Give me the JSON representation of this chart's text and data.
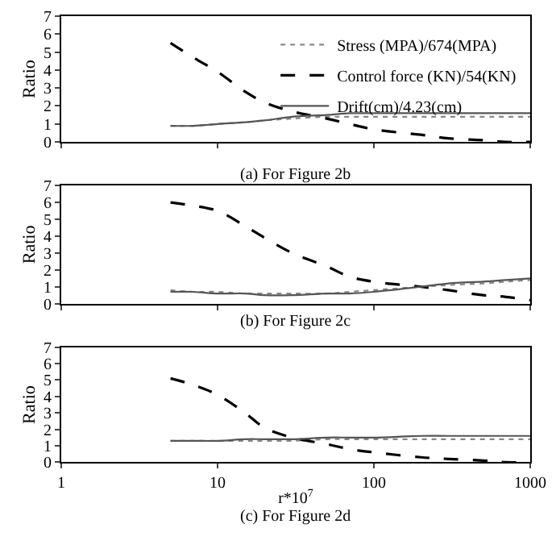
{
  "chart_data": [
    {
      "type": "line",
      "x": [
        5,
        7,
        10,
        15,
        20,
        30,
        50,
        70,
        100,
        200,
        300,
        500,
        700,
        1000
      ],
      "xlim": [
        1,
        1000
      ],
      "xticks": [
        1,
        10,
        100,
        1000
      ],
      "ylim": [
        0,
        7
      ],
      "yticks": [
        0,
        1,
        2,
        3,
        4,
        5,
        6,
        7
      ],
      "log": "x",
      "ylabel": "Ratio",
      "tick_labels": "y",
      "legend": "top right",
      "annotations": [
        "(a) For Figure 2b"
      ],
      "series": [
        {
          "name": "Stress (MPA)/674(MPA)",
          "color": "#888888",
          "line_style": "dotted",
          "values": [
            0.9,
            0.9,
            1.0,
            1.1,
            1.2,
            1.3,
            1.4,
            1.4,
            1.4,
            1.4,
            1.4,
            1.4,
            1.4,
            1.4
          ]
        },
        {
          "name": "Control force (KN)/54(KN)",
          "color": "#000000",
          "line_style": "dashed",
          "values": [
            5.5,
            4.7,
            3.9,
            2.8,
            2.2,
            1.7,
            1.3,
            1.0,
            0.7,
            0.4,
            0.2,
            0.1,
            0.0,
            0.0
          ]
        },
        {
          "name": "Drift(cm)/4.23(cm)",
          "color": "#555555",
          "line_style": "solid",
          "values": [
            0.9,
            0.9,
            1.0,
            1.1,
            1.2,
            1.4,
            1.5,
            1.6,
            1.6,
            1.6,
            1.6,
            1.6,
            1.6,
            1.6
          ]
        }
      ]
    },
    {
      "type": "line",
      "x": [
        5,
        7,
        10,
        15,
        20,
        30,
        50,
        70,
        100,
        200,
        300,
        500,
        700,
        1000
      ],
      "xlim": [
        1,
        1000
      ],
      "xticks": [
        1,
        10,
        100,
        1000
      ],
      "ylim": [
        0,
        7
      ],
      "yticks": [
        0,
        1,
        2,
        3,
        4,
        5,
        6,
        7
      ],
      "log": "x",
      "ylabel": "Ratio",
      "tick_labels": "y",
      "annotations": [
        "(b) For Figure 2c"
      ],
      "series": [
        {
          "color": "#888888",
          "line_style": "dotted",
          "values": [
            0.8,
            0.7,
            0.7,
            0.6,
            0.6,
            0.6,
            0.6,
            0.7,
            0.8,
            1.0,
            1.1,
            1.2,
            1.3,
            1.4
          ]
        },
        {
          "color": "#000000",
          "line_style": "dashed",
          "values": [
            6.0,
            5.8,
            5.5,
            4.6,
            3.9,
            3.0,
            2.2,
            1.6,
            1.3,
            1.0,
            0.8,
            0.5,
            0.4,
            0.2
          ]
        },
        {
          "color": "#555555",
          "line_style": "solid",
          "values": [
            0.7,
            0.7,
            0.6,
            0.6,
            0.5,
            0.5,
            0.6,
            0.6,
            0.7,
            1.0,
            1.2,
            1.3,
            1.4,
            1.5
          ]
        }
      ]
    },
    {
      "type": "line",
      "x": [
        5,
        7,
        10,
        15,
        20,
        30,
        50,
        70,
        100,
        200,
        300,
        500,
        700,
        1000
      ],
      "xlim": [
        1,
        1000
      ],
      "xticks": [
        1,
        10,
        100,
        1000
      ],
      "ylim": [
        0,
        7
      ],
      "yticks": [
        0,
        1,
        2,
        3,
        4,
        5,
        6,
        7
      ],
      "log": "x",
      "ylabel": "Ratio",
      "xlabel": "r*10$^{7}$",
      "annotations": [
        "(c) For Figure 2d"
      ],
      "series": [
        {
          "color": "#888888",
          "line_style": "dotted",
          "values": [
            1.3,
            1.3,
            1.3,
            1.3,
            1.3,
            1.3,
            1.4,
            1.4,
            1.4,
            1.4,
            1.4,
            1.4,
            1.4,
            1.4
          ]
        },
        {
          "color": "#000000",
          "line_style": "dashed",
          "values": [
            5.1,
            4.7,
            4.1,
            3.0,
            2.1,
            1.5,
            1.1,
            0.8,
            0.6,
            0.3,
            0.2,
            0.1,
            0.0,
            0.0
          ]
        },
        {
          "color": "#555555",
          "line_style": "solid",
          "values": [
            1.3,
            1.3,
            1.3,
            1.4,
            1.4,
            1.4,
            1.5,
            1.5,
            1.5,
            1.6,
            1.6,
            1.6,
            1.6,
            1.6
          ]
        }
      ]
    }
  ]
}
